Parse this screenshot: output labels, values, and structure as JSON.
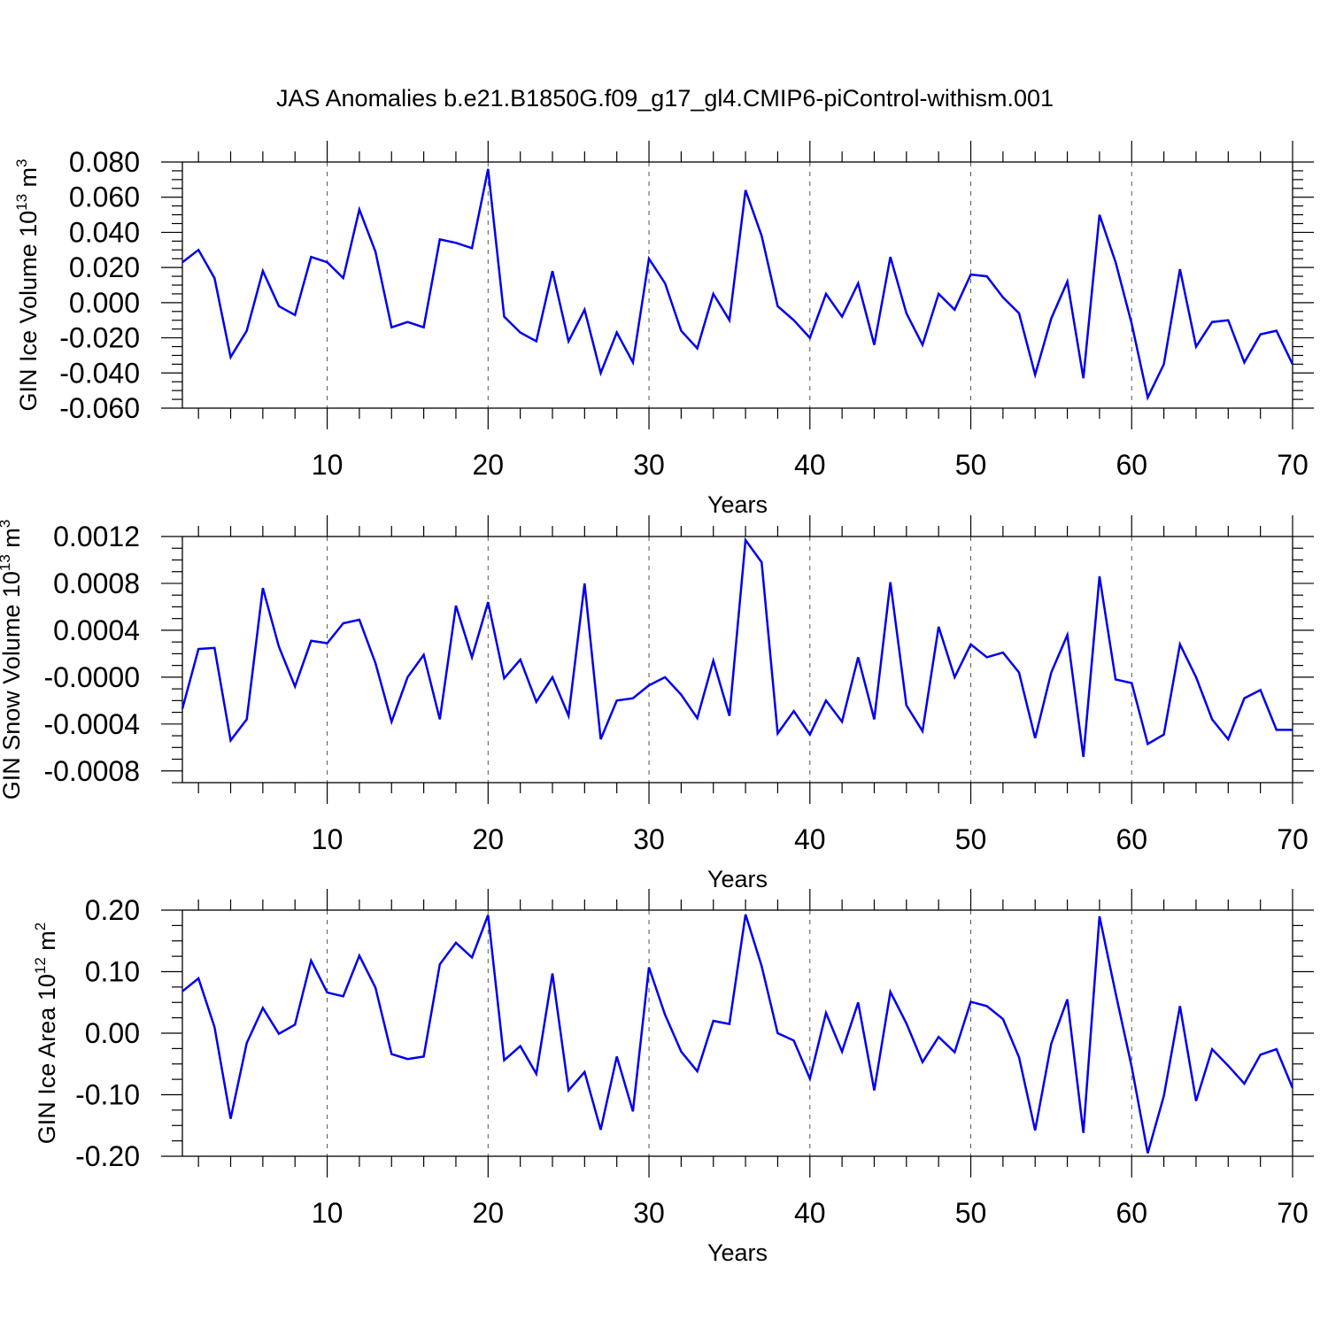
{
  "figure": {
    "title": "JAS Anomalies b.e21.B1850G.f09_g17_gl4.CMIP6-piControl-withism.001",
    "line_color": "#0000ee",
    "grid": "vertical dashed lines at major x ticks"
  },
  "chart_data": [
    {
      "type": "line",
      "ylabel": "GIN Ice Volume 10",
      "ylabel_exp": "13",
      "ylabel_unit": "m",
      "ylabel_unit_exp": "3",
      "xlabel": "Years",
      "xlim": [
        1,
        70
      ],
      "ylim": [
        -0.06,
        0.08
      ],
      "xticks": [
        10,
        20,
        30,
        40,
        50,
        60,
        70
      ],
      "xtick_labels": [
        "10",
        "20",
        "30",
        "40",
        "50",
        "60",
        "70"
      ],
      "yticks": [
        -0.06,
        -0.04,
        -0.02,
        0.0,
        0.02,
        0.04,
        0.06,
        0.08
      ],
      "ytick_labels": [
        "-0.060",
        "-0.040",
        "-0.020",
        "0.000",
        "0.020",
        "0.040",
        "0.060",
        "0.080"
      ],
      "series": [
        {
          "x": [
            1,
            2,
            3,
            4,
            5,
            6,
            7,
            8,
            9,
            10,
            11,
            12,
            13,
            14,
            15,
            16,
            17,
            18,
            19,
            20,
            21,
            22,
            23,
            24,
            25,
            26,
            27,
            28,
            29,
            30,
            31,
            32,
            33,
            34,
            35,
            36,
            37,
            38,
            39,
            40,
            41,
            42,
            43,
            44,
            45,
            46,
            47,
            48,
            49,
            50,
            51,
            52,
            53,
            54,
            55,
            56,
            57,
            58,
            59,
            60,
            61,
            62,
            63,
            64,
            65,
            66,
            67,
            68,
            69,
            70
          ],
          "values": [
            0.023,
            0.03,
            0.014,
            -0.031,
            -0.016,
            0.018,
            -0.002,
            -0.007,
            0.026,
            0.023,
            0.014,
            0.053,
            0.029,
            -0.014,
            -0.011,
            -0.014,
            0.036,
            0.034,
            0.031,
            0.076,
            -0.008,
            -0.017,
            -0.022,
            0.018,
            -0.022,
            -0.004,
            -0.04,
            -0.017,
            -0.034,
            0.025,
            0.011,
            -0.016,
            -0.026,
            0.005,
            -0.01,
            0.064,
            0.038,
            -0.002,
            -0.01,
            -0.02,
            0.005,
            -0.008,
            0.011,
            -0.024,
            0.026,
            -0.006,
            -0.024,
            0.005,
            -0.004,
            0.016,
            0.015,
            0.003,
            -0.006,
            -0.041,
            -0.009,
            0.012,
            -0.043,
            0.05,
            0.023,
            -0.012,
            -0.054,
            -0.035,
            0.019,
            -0.025,
            -0.011,
            -0.01,
            -0.034,
            -0.018,
            -0.016,
            -0.035
          ]
        }
      ]
    },
    {
      "type": "line",
      "ylabel": "GIN Snow Volume 10",
      "ylabel_exp": "13",
      "ylabel_unit": "m",
      "ylabel_unit_exp": "3",
      "xlabel": "Years",
      "xlim": [
        1,
        70
      ],
      "ylim": [
        -0.0009,
        0.0012
      ],
      "xticks": [
        10,
        20,
        30,
        40,
        50,
        60,
        70
      ],
      "xtick_labels": [
        "10",
        "20",
        "30",
        "40",
        "50",
        "60",
        "70"
      ],
      "yticks": [
        -0.0008,
        -0.0004,
        0.0,
        0.0004,
        0.0008,
        0.0012
      ],
      "ytick_labels": [
        "-0.0008",
        "-0.0004",
        "-0.0000",
        "0.0004",
        "0.0008",
        "0.0012"
      ],
      "series": [
        {
          "x": [
            1,
            2,
            3,
            4,
            5,
            6,
            7,
            8,
            9,
            10,
            11,
            12,
            13,
            14,
            15,
            16,
            17,
            18,
            19,
            20,
            21,
            22,
            23,
            24,
            25,
            26,
            27,
            28,
            29,
            30,
            31,
            32,
            33,
            34,
            35,
            36,
            37,
            38,
            39,
            40,
            41,
            42,
            43,
            44,
            45,
            46,
            47,
            48,
            49,
            50,
            51,
            52,
            53,
            54,
            55,
            56,
            57,
            58,
            59,
            60,
            61,
            62,
            63,
            64,
            65,
            66,
            67,
            68,
            69,
            70
          ],
          "values": [
            -0.00027,
            0.00024,
            0.00025,
            -0.00054,
            -0.00036,
            0.00076,
            0.00026,
            -8e-05,
            0.00031,
            0.00029,
            0.00046,
            0.00049,
            0.00012,
            -0.00038,
            0.0,
            0.00019,
            -0.00036,
            0.00061,
            0.00017,
            0.00064,
            -1e-05,
            0.00015,
            -0.00021,
            0.0,
            -0.00033,
            0.0008,
            -0.00053,
            -0.0002,
            -0.00018,
            -7e-05,
            0.0,
            -0.00015,
            -0.00035,
            0.00014,
            -0.00033,
            0.00117,
            0.00098,
            -0.00048,
            -0.00029,
            -0.00049,
            -0.0002,
            -0.00038,
            0.00017,
            -0.00036,
            0.00081,
            -0.00024,
            -0.00046,
            0.00043,
            0.0,
            0.00028,
            0.00017,
            0.00021,
            4e-05,
            -0.00052,
            4e-05,
            0.00036,
            -0.00068,
            0.00086,
            -2e-05,
            -5e-05,
            -0.00057,
            -0.00049,
            0.00028,
            0.0,
            -0.00036,
            -0.00053,
            -0.00018,
            -0.00011,
            -0.00045,
            -0.00045
          ]
        }
      ]
    },
    {
      "type": "line",
      "ylabel": "GIN Ice Area 10",
      "ylabel_exp": "12",
      "ylabel_unit": "m",
      "ylabel_unit_exp": "2",
      "xlabel": "Years",
      "xlim": [
        1,
        70
      ],
      "ylim": [
        -0.2,
        0.2
      ],
      "xticks": [
        10,
        20,
        30,
        40,
        50,
        60,
        70
      ],
      "xtick_labels": [
        "10",
        "20",
        "30",
        "40",
        "50",
        "60",
        "70"
      ],
      "yticks": [
        -0.2,
        -0.1,
        0.0,
        0.1,
        0.2
      ],
      "ytick_labels": [
        "-0.20",
        "-0.10",
        "0.00",
        "0.10",
        "0.20"
      ],
      "series": [
        {
          "x": [
            1,
            2,
            3,
            4,
            5,
            6,
            7,
            8,
            9,
            10,
            11,
            12,
            13,
            14,
            15,
            16,
            17,
            18,
            19,
            20,
            21,
            22,
            23,
            24,
            25,
            26,
            27,
            28,
            29,
            30,
            31,
            32,
            33,
            34,
            35,
            36,
            37,
            38,
            39,
            40,
            41,
            42,
            43,
            44,
            45,
            46,
            47,
            48,
            49,
            50,
            51,
            52,
            53,
            54,
            55,
            56,
            57,
            58,
            59,
            60,
            61,
            62,
            63,
            64,
            65,
            66,
            67,
            68,
            69,
            70
          ],
          "values": [
            0.068,
            0.089,
            0.01,
            -0.139,
            -0.016,
            0.041,
            -0.001,
            0.014,
            0.118,
            0.066,
            0.06,
            0.126,
            0.074,
            -0.034,
            -0.042,
            -0.038,
            0.112,
            0.147,
            0.123,
            0.192,
            -0.044,
            -0.021,
            -0.066,
            0.097,
            -0.093,
            -0.063,
            -0.157,
            -0.038,
            -0.127,
            0.107,
            0.03,
            -0.03,
            -0.062,
            0.02,
            0.015,
            0.193,
            0.109,
            0.0,
            -0.012,
            -0.074,
            0.033,
            -0.03,
            0.05,
            -0.093,
            0.067,
            0.016,
            -0.047,
            -0.006,
            -0.031,
            0.051,
            0.044,
            0.023,
            -0.039,
            -0.158,
            -0.017,
            0.055,
            -0.162,
            0.19,
            0.065,
            -0.055,
            -0.195,
            -0.102,
            0.044,
            -0.11,
            -0.026,
            -0.053,
            -0.082,
            -0.035,
            -0.026,
            -0.089
          ]
        }
      ]
    }
  ]
}
